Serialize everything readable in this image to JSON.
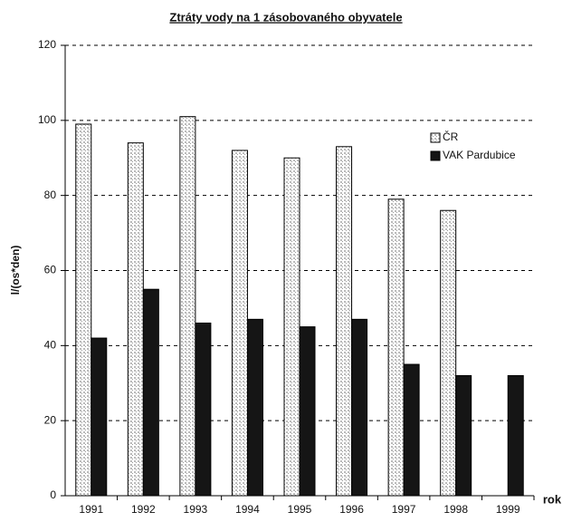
{
  "chart_data": {
    "type": "bar",
    "title": "Ztráty vody na 1 zásobovaného obyvatele",
    "y_label": "l/(os*den)",
    "x_label": "rok",
    "categories": [
      "1991",
      "1992",
      "1993",
      "1994",
      "1995",
      "1996",
      "1997",
      "1998",
      "1999"
    ],
    "series": [
      {
        "name": "ČR",
        "color": "#d8d8d8",
        "values": [
          99,
          94,
          101,
          92,
          90,
          93,
          79,
          76,
          null
        ]
      },
      {
        "name": "VAK Pardubice",
        "color": "#151515",
        "values": [
          42,
          55,
          46,
          47,
          45,
          47,
          35,
          32,
          32
        ]
      }
    ],
    "ylim": [
      0,
      120
    ],
    "yticks": [
      0,
      20,
      40,
      60,
      80,
      100,
      120
    ],
    "grid": true,
    "legend": "upper right"
  }
}
